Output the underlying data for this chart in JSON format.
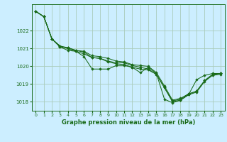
{
  "title": "Graphe pression niveau de la mer (hPa)",
  "background_color": "#cceeff",
  "grid_color": "#aaccbb",
  "line_color": "#1a6b1a",
  "marker_color": "#1a6b1a",
  "xlim": [
    -0.5,
    23.5
  ],
  "ylim": [
    1017.5,
    1023.5
  ],
  "yticks": [
    1018,
    1019,
    1020,
    1021,
    1022
  ],
  "xticks": [
    0,
    1,
    2,
    3,
    4,
    5,
    6,
    7,
    8,
    9,
    10,
    11,
    12,
    13,
    14,
    15,
    16,
    17,
    18,
    19,
    20,
    21,
    22,
    23
  ],
  "series": [
    [
      1023.1,
      1022.8,
      1021.55,
      1021.1,
      1020.9,
      1020.85,
      1020.7,
      1020.5,
      1020.45,
      1020.3,
      1020.2,
      1020.2,
      1020.05,
      1019.95,
      1019.85,
      1019.55,
      1018.8,
      1018.05,
      1018.15,
      1018.45,
      1018.6,
      1019.2,
      1019.55,
      1019.6
    ],
    [
      1023.1,
      1022.8,
      1021.55,
      1021.1,
      1021.05,
      1020.9,
      1020.85,
      1020.6,
      1020.55,
      1020.45,
      1020.3,
      1020.25,
      1020.1,
      1020.05,
      1020.0,
      1019.65,
      1018.9,
      1018.1,
      1018.2,
      1018.45,
      1018.6,
      1019.2,
      1019.55,
      1019.6
    ],
    [
      1023.1,
      1022.8,
      1021.55,
      1021.15,
      1021.0,
      1020.85,
      1020.55,
      1019.85,
      1019.85,
      1019.85,
      1020.05,
      1020.05,
      1019.95,
      1019.65,
      1019.95,
      1019.6,
      1018.15,
      1017.95,
      1018.1,
      1018.4,
      1019.25,
      1019.5,
      1019.6,
      1019.6
    ],
    [
      1023.1,
      1022.8,
      1021.55,
      1021.15,
      1021.05,
      1020.9,
      1020.8,
      1020.5,
      1020.45,
      1020.25,
      1020.15,
      1020.1,
      1019.95,
      1019.85,
      1019.8,
      1019.55,
      1018.8,
      1018.0,
      1018.1,
      1018.4,
      1018.55,
      1019.15,
      1019.5,
      1019.55
    ]
  ]
}
